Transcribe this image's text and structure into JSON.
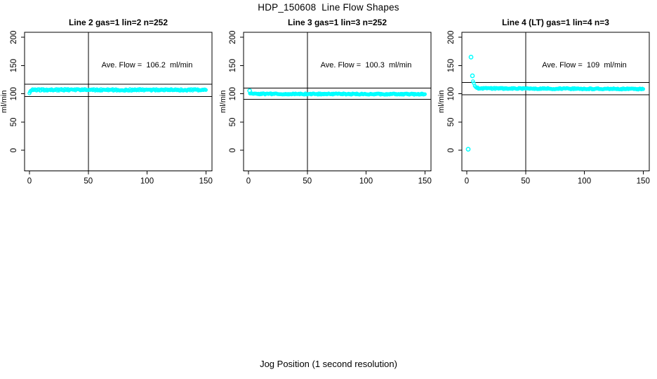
{
  "page": {
    "title": "HDP_150608  Line Flow Shapes",
    "xlabel": "Jog Position (1 second resolution)"
  },
  "colors": {
    "point": "#00ffff",
    "axis": "#000000",
    "text": "#000000",
    "background": "#ffffff"
  },
  "chart_data": [
    {
      "type": "scatter",
      "title": "Line 2 gas=1 lin=2 n=252",
      "annotation": "Ave. Flow =  106.2  ml/min",
      "ave_flow_ml_min": 106.2,
      "n": 252,
      "ylabel": "ml/min",
      "x_ticks": [
        0,
        50,
        100,
        150
      ],
      "y_ticks": [
        0,
        50,
        100,
        150,
        200
      ],
      "vline_x": 50,
      "hlines": [
        116.8,
        95.6
      ],
      "annotation_at": [
        100,
        152
      ],
      "profile": [
        [
          0,
          102.5
        ],
        [
          0.6,
          104.5
        ],
        [
          1.2,
          106
        ],
        [
          2,
          106.8
        ],
        [
          4,
          107
        ],
        [
          30,
          107.2
        ],
        [
          70,
          107
        ],
        [
          110,
          107.1
        ],
        [
          150,
          106.9
        ]
      ],
      "outliers": [],
      "band_jitter": 1.4
    },
    {
      "type": "scatter",
      "title": "Line 3 gas=1 lin=3 n=252",
      "annotation": "Ave. Flow =  100.3  ml/min",
      "ave_flow_ml_min": 100.3,
      "n": 252,
      "ylabel": "ml/min",
      "x_ticks": [
        0,
        50,
        100,
        150
      ],
      "y_ticks": [
        0,
        50,
        100,
        150,
        200
      ],
      "vline_x": 50,
      "hlines": [
        110.3,
        90.3
      ],
      "annotation_at": [
        100,
        152
      ],
      "profile": [
        [
          1.3,
          101.5
        ],
        [
          2.5,
          100.5
        ],
        [
          5,
          100
        ],
        [
          40,
          99.8
        ],
        [
          90,
          99.7
        ],
        [
          150,
          99.4
        ]
      ],
      "outliers": [
        [
          1,
          105.5
        ]
      ],
      "band_jitter": 1.0
    },
    {
      "type": "scatter",
      "title": "Line 4 (LT) gas=1 lin=4 n=3",
      "annotation": "Ave. Flow =  109  ml/min",
      "ave_flow_ml_min": 109,
      "n": 3,
      "ylabel": "ml/min",
      "x_ticks": [
        0,
        50,
        100,
        150
      ],
      "y_ticks": [
        0,
        50,
        100,
        150,
        200
      ],
      "vline_x": 50,
      "hlines": [
        119.9,
        98.1
      ],
      "annotation_at": [
        100,
        152
      ],
      "profile": [
        [
          5.3,
          122
        ],
        [
          6,
          118
        ],
        [
          6.8,
          114.5
        ],
        [
          7.6,
          112
        ],
        [
          8.5,
          110.8
        ],
        [
          10,
          110
        ],
        [
          20,
          109.7
        ],
        [
          50,
          109.4
        ],
        [
          90,
          109.1
        ],
        [
          150,
          108.5
        ]
      ],
      "outliers": [
        [
          1.2,
          2
        ],
        [
          3.6,
          165
        ],
        [
          4.8,
          132
        ]
      ],
      "band_jitter": 1.0
    }
  ]
}
